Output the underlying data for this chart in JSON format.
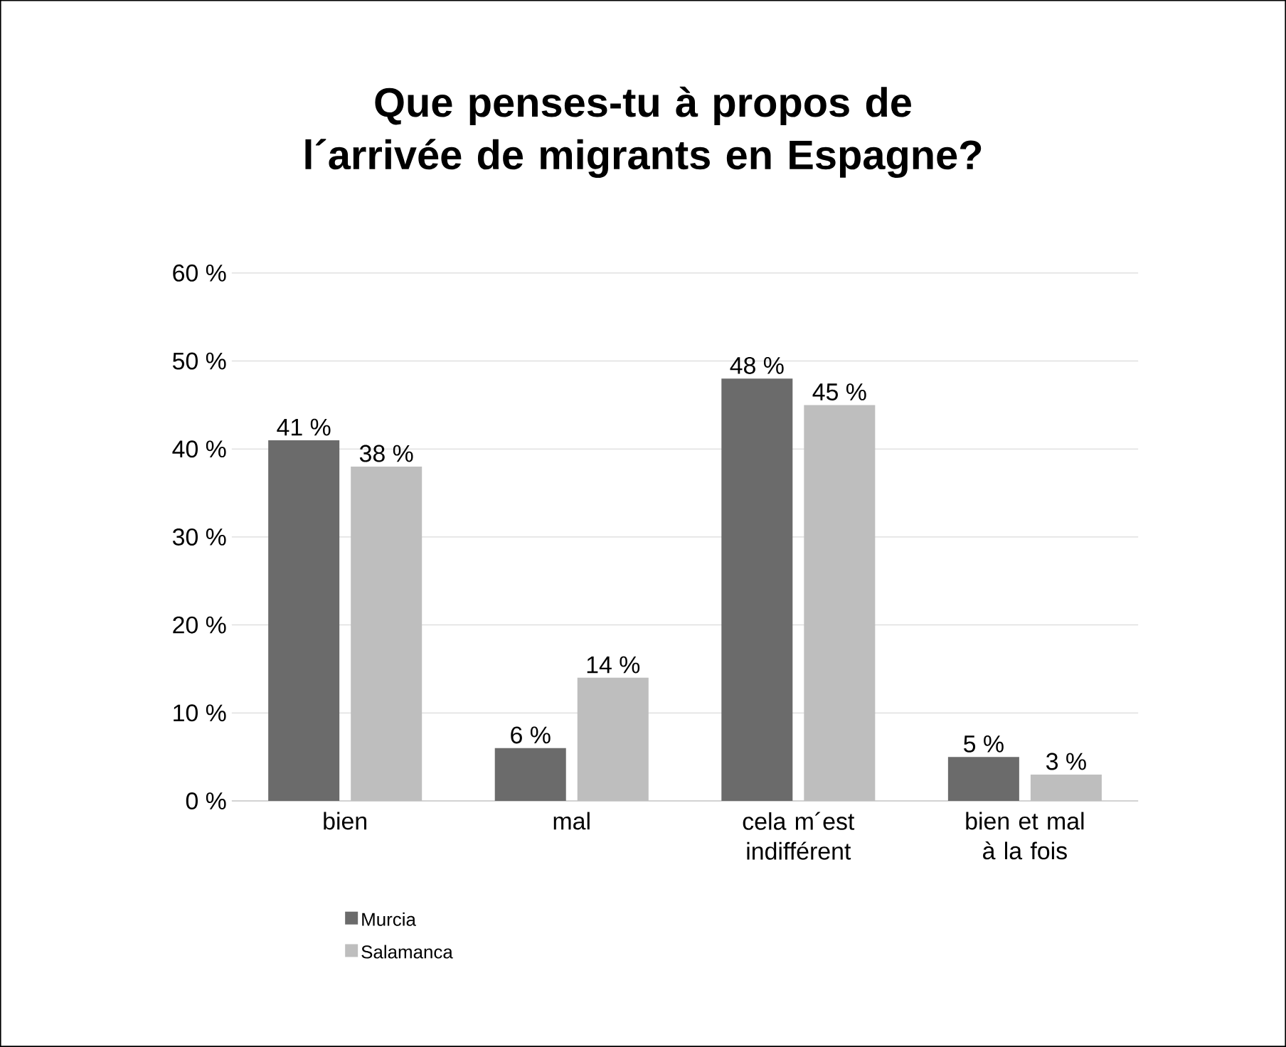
{
  "chart_data": {
    "type": "bar",
    "title": "Que penses-tu à propos de l´arrivée de migrants en Espagne?",
    "categories": [
      "bien",
      "mal",
      "cela m´est indifférent",
      "bien et mal à la fois"
    ],
    "series": [
      {
        "name": "Murcia",
        "color": "#6b6b6b",
        "values": [
          41,
          6,
          48,
          5
        ],
        "value_labels": [
          "41 %",
          "6 %",
          "48 %",
          "5 %"
        ]
      },
      {
        "name": "Salamanca",
        "color": "#bebebe",
        "values": [
          38,
          14,
          45,
          3
        ],
        "value_labels": [
          "38 %",
          "14 %",
          "45 %",
          "3 %"
        ]
      }
    ],
    "ylim": [
      0,
      60
    ],
    "yticks": [
      {
        "value": 0,
        "label": "0 %"
      },
      {
        "value": 10,
        "label": "10 %"
      },
      {
        "value": 20,
        "label": "20 %"
      },
      {
        "value": 30,
        "label": "30 %"
      },
      {
        "value": 40,
        "label": "40 %"
      },
      {
        "value": 50,
        "label": "50 %"
      },
      {
        "value": 60,
        "label": "60 %"
      }
    ],
    "grid": "y",
    "legend": "bottom"
  }
}
